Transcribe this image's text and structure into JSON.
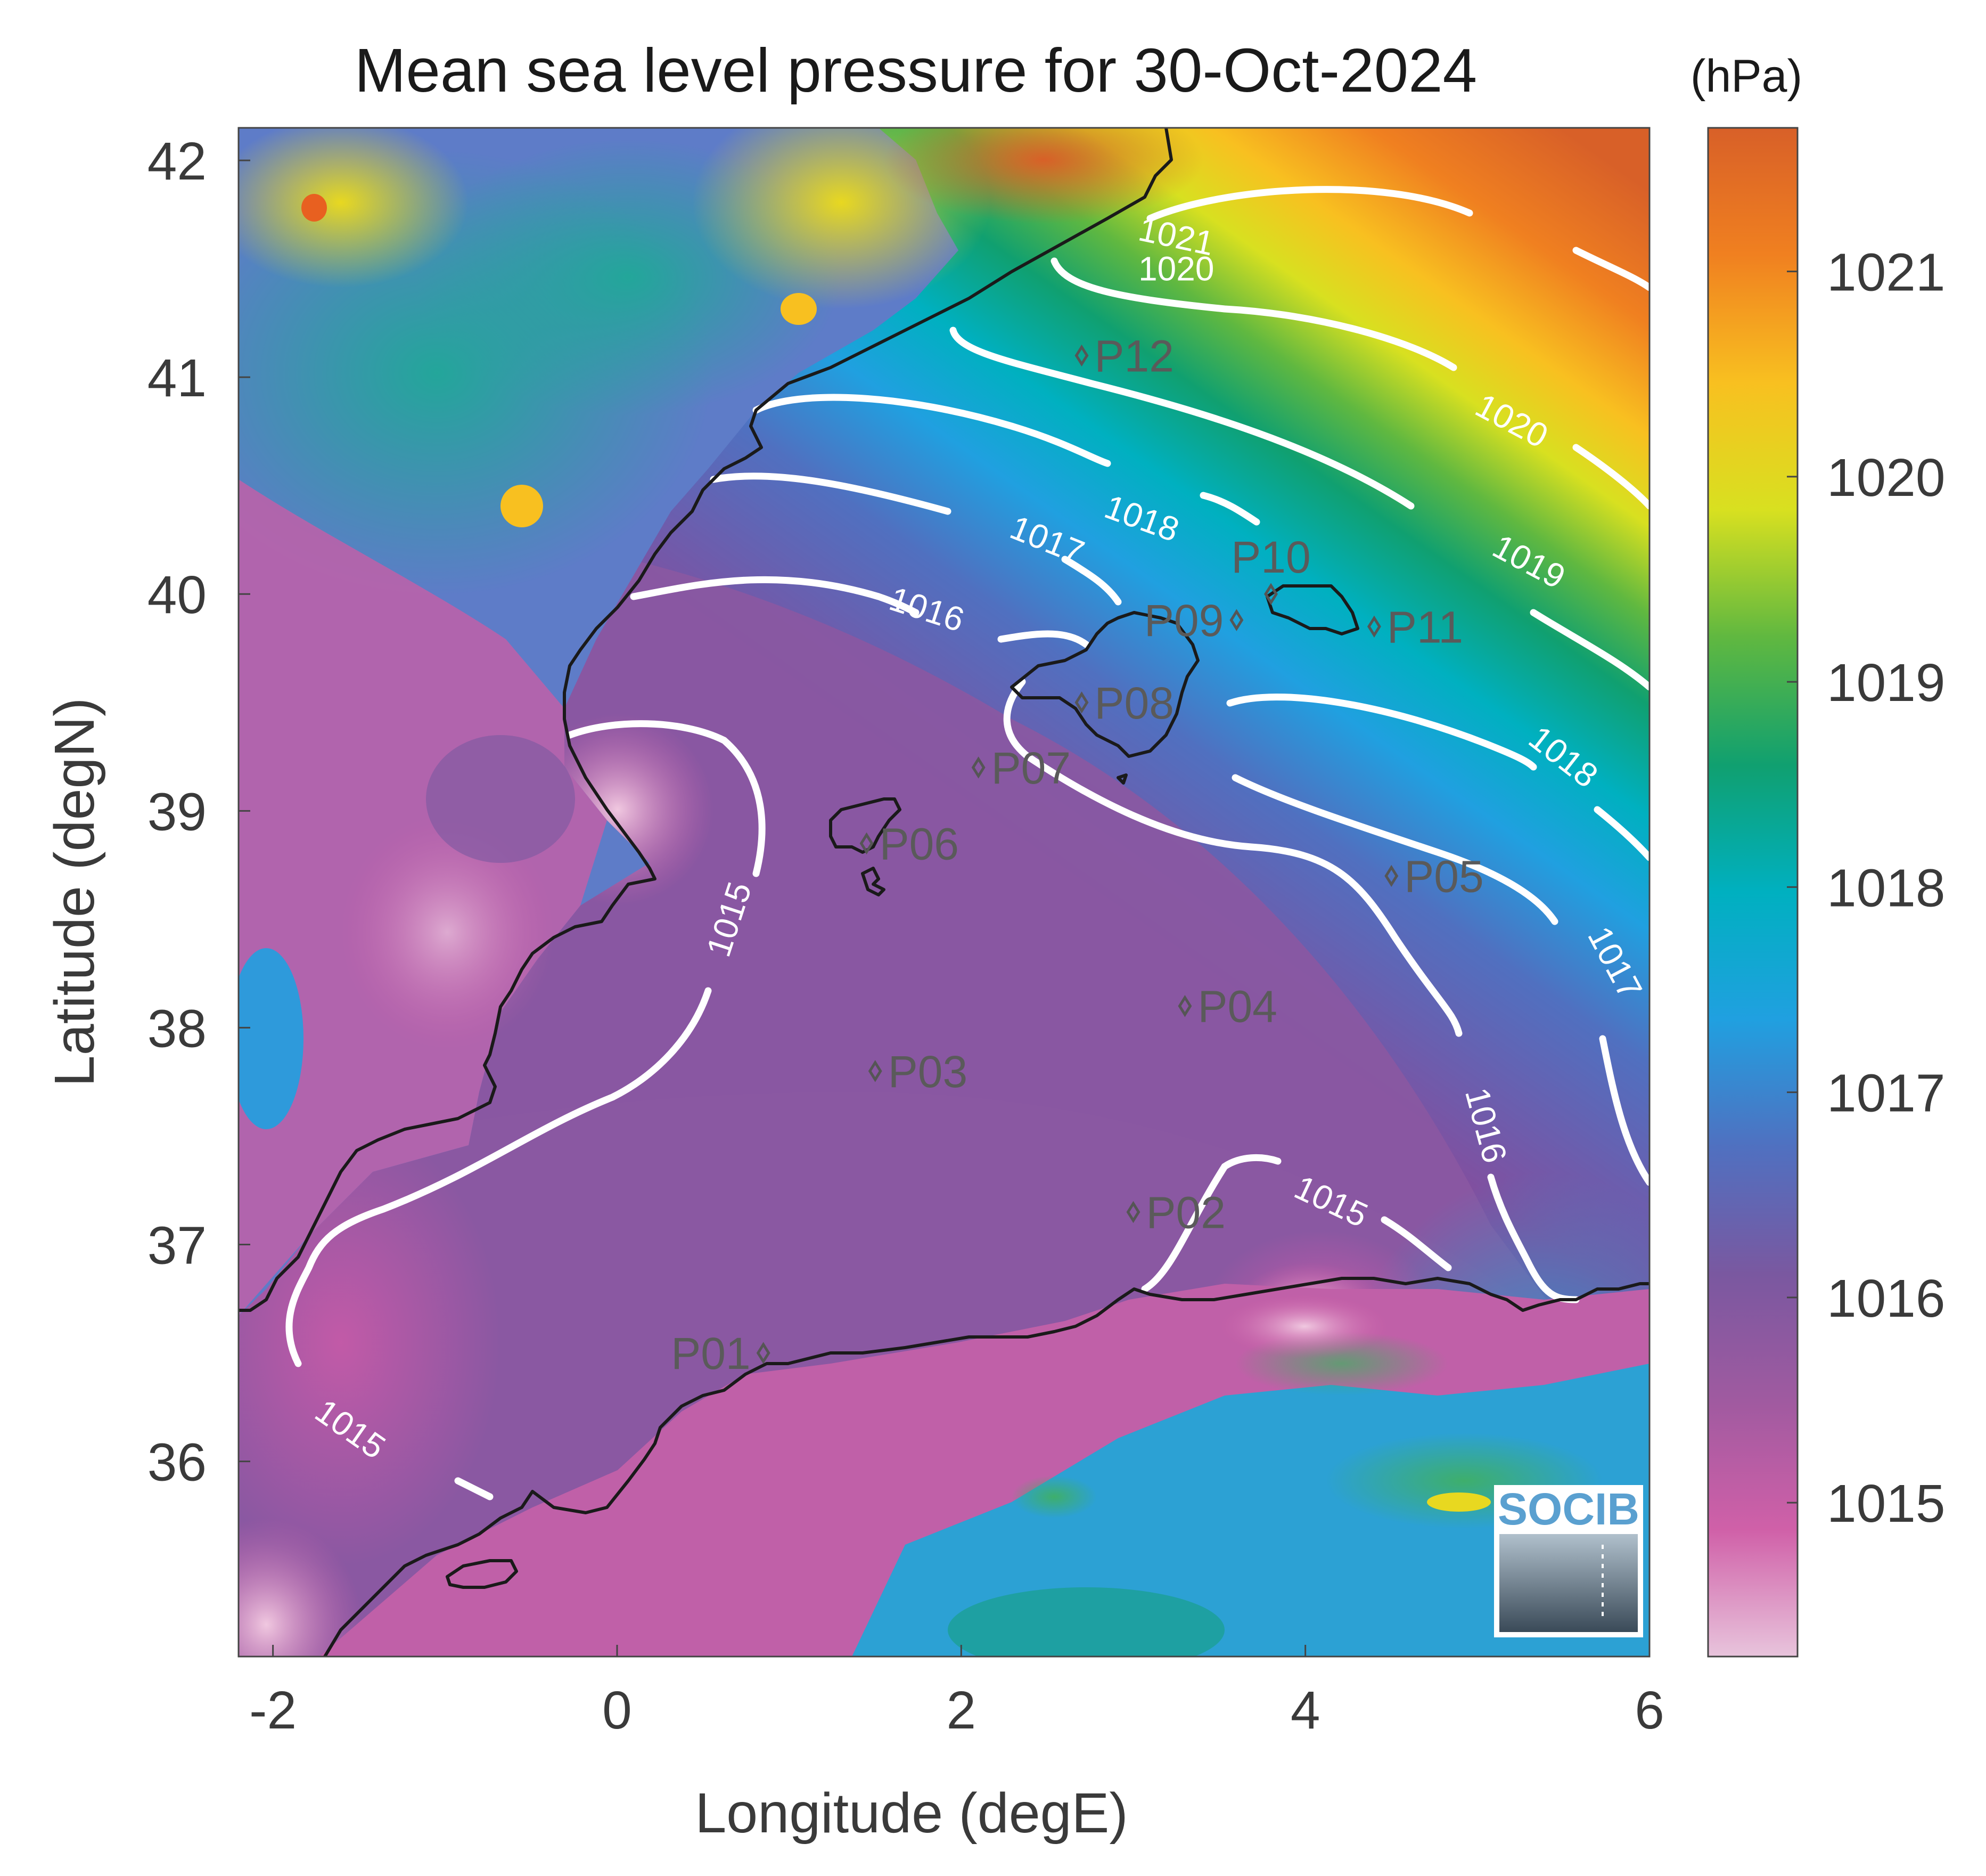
{
  "title": "Mean sea level pressure for 30-Oct-2024",
  "units": "(hPa)",
  "x_axis": {
    "label": "Longitude (degE)",
    "range": [
      -2.2,
      6.0
    ],
    "ticks": [
      {
        "value": -2,
        "label": "-2"
      },
      {
        "value": 0,
        "label": "0"
      },
      {
        "value": 2,
        "label": "2"
      },
      {
        "value": 4,
        "label": "4"
      },
      {
        "value": 6,
        "label": "6"
      }
    ]
  },
  "y_axis": {
    "label": "Latitude (degN)",
    "range": [
      35.1,
      42.15
    ],
    "ticks": [
      {
        "value": 36,
        "label": "36"
      },
      {
        "value": 37,
        "label": "37"
      },
      {
        "value": 38,
        "label": "38"
      },
      {
        "value": 39,
        "label": "39"
      },
      {
        "value": 40,
        "label": "40"
      },
      {
        "value": 41,
        "label": "41"
      },
      {
        "value": 42,
        "label": "42"
      }
    ]
  },
  "colorbar": {
    "range": [
      1014.25,
      1021.7
    ],
    "colors": [
      "#e8c4dc",
      "#d060a8",
      "#a05aa0",
      "#7a58a0",
      "#5070c0",
      "#20a0e0",
      "#00b0c0",
      "#10a070",
      "#60b840",
      "#d8e020",
      "#f8c020",
      "#f08020",
      "#d86028"
    ],
    "ticks": [
      {
        "value": 1015,
        "label": "1015"
      },
      {
        "value": 1016,
        "label": "1016"
      },
      {
        "value": 1017,
        "label": "1017"
      },
      {
        "value": 1018,
        "label": "1018"
      },
      {
        "value": 1019,
        "label": "1019"
      },
      {
        "value": 1020,
        "label": "1020"
      },
      {
        "value": 1021,
        "label": "1021"
      }
    ]
  },
  "contour_labels": [
    {
      "text": "1021",
      "lon": 3.25,
      "lat": 41.65,
      "angle": 12
    },
    {
      "text": "1020",
      "lon": 3.25,
      "lat": 41.5,
      "angle": 0
    },
    {
      "text": "1020",
      "lon": 5.2,
      "lat": 40.8,
      "angle": 28
    },
    {
      "text": "1018",
      "lon": 3.05,
      "lat": 40.35,
      "angle": 20
    },
    {
      "text": "1019",
      "lon": 5.3,
      "lat": 40.15,
      "angle": 28
    },
    {
      "text": "1017",
      "lon": 2.5,
      "lat": 40.25,
      "angle": 22
    },
    {
      "text": "1016",
      "lon": 1.8,
      "lat": 39.93,
      "angle": 18
    },
    {
      "text": "1018",
      "lon": 5.5,
      "lat": 39.25,
      "angle": 38
    },
    {
      "text": "1015",
      "lon": 0.65,
      "lat": 38.5,
      "angle": -72
    },
    {
      "text": "1017",
      "lon": 5.8,
      "lat": 38.3,
      "angle": 62
    },
    {
      "text": "1016",
      "lon": 5.05,
      "lat": 37.55,
      "angle": 75
    },
    {
      "text": "1015",
      "lon": 4.15,
      "lat": 37.2,
      "angle": 25
    },
    {
      "text": "1015",
      "lon": -1.55,
      "lat": 36.15,
      "angle": 35
    }
  ],
  "stations": [
    {
      "id": "P01",
      "lon": 0.85,
      "lat": 36.5,
      "label_side": "left"
    },
    {
      "id": "P02",
      "lon": 3.0,
      "lat": 37.15,
      "label_side": "right"
    },
    {
      "id": "P03",
      "lon": 1.5,
      "lat": 37.8,
      "label_side": "right"
    },
    {
      "id": "P04",
      "lon": 3.3,
      "lat": 38.1,
      "label_side": "right"
    },
    {
      "id": "P05",
      "lon": 4.5,
      "lat": 38.7,
      "label_side": "right"
    },
    {
      "id": "P06",
      "lon": 1.45,
      "lat": 38.85,
      "label_side": "right"
    },
    {
      "id": "P07",
      "lon": 2.1,
      "lat": 39.2,
      "label_side": "right"
    },
    {
      "id": "P08",
      "lon": 2.7,
      "lat": 39.5,
      "label_side": "right"
    },
    {
      "id": "P09",
      "lon": 3.6,
      "lat": 39.88,
      "label_side": "left"
    },
    {
      "id": "P10",
      "lon": 3.8,
      "lat": 40.0,
      "label_side": "above"
    },
    {
      "id": "P11",
      "lon": 4.4,
      "lat": 39.85,
      "label_side": "right"
    },
    {
      "id": "P12",
      "lon": 2.7,
      "lat": 41.1,
      "label_side": "right"
    }
  ],
  "logo": {
    "text": "SOCIB"
  }
}
